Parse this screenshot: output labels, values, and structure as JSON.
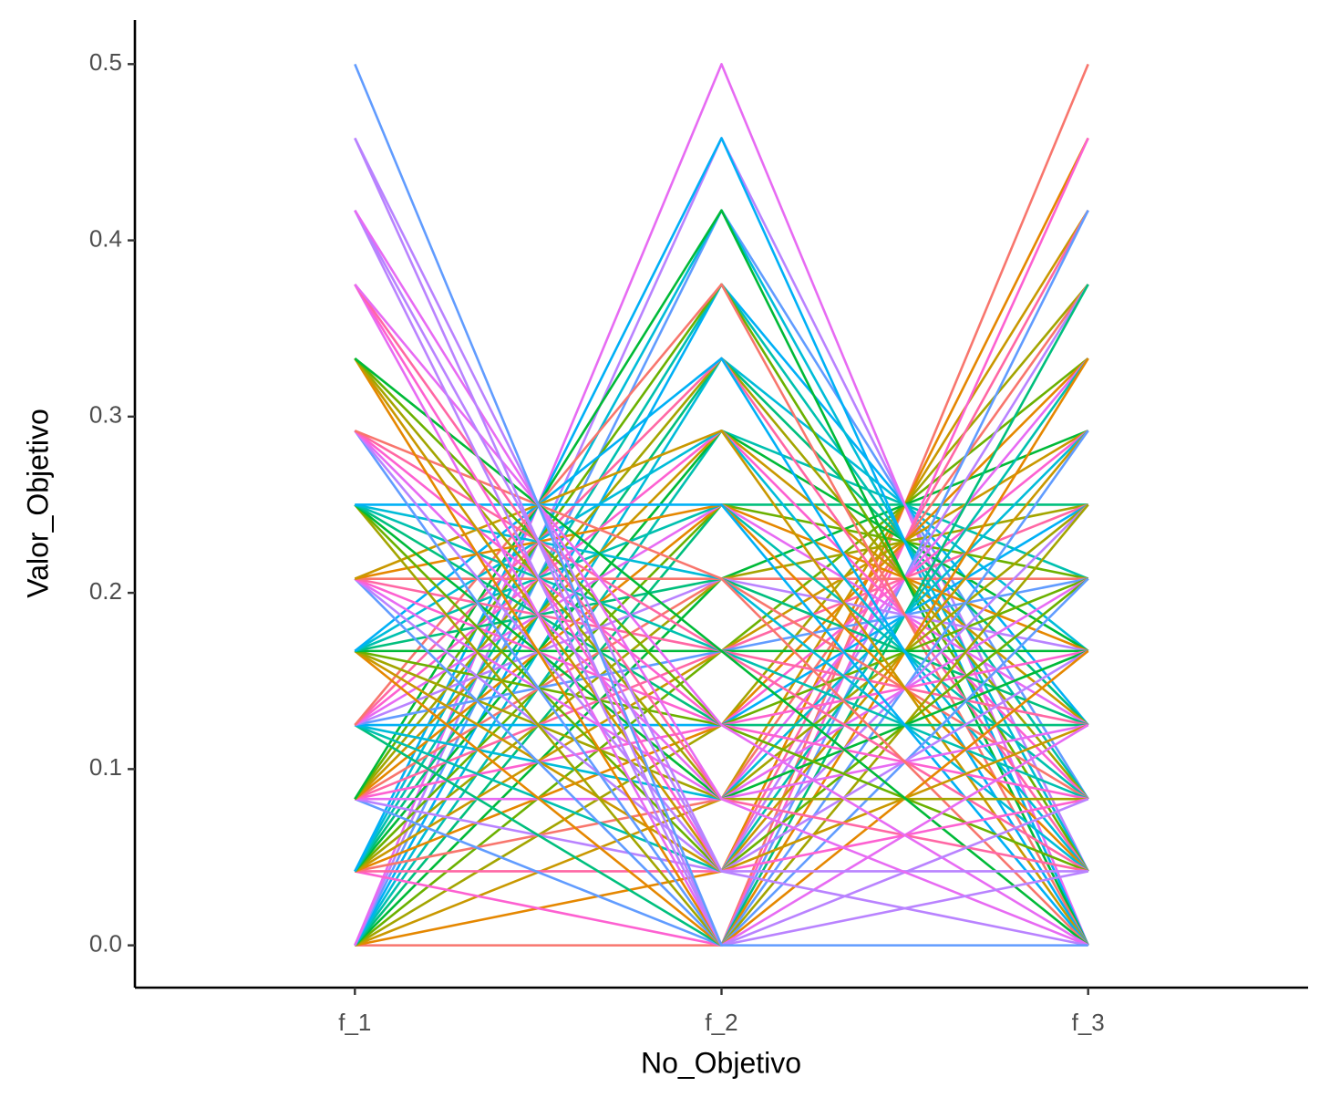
{
  "chart_data": {
    "type": "parallel",
    "x_label": "No_Objetivo",
    "y_label": "Valor_Objetivo",
    "categories": [
      "f_1",
      "f_2",
      "f_3"
    ],
    "ylim": [
      -0.024,
      0.525
    ],
    "yticks": [
      {
        "value": 0,
        "label": "0.0"
      },
      0.1,
      0.2,
      0.3,
      0.4,
      0.5
    ],
    "grid": false,
    "series": [
      {
        "color": "#F8766D",
        "values": [
          0,
          0,
          0.5
        ]
      },
      {
        "color": "#E58700",
        "values": [
          0,
          0.042,
          0.458
        ]
      },
      {
        "color": "#C99800",
        "values": [
          0,
          0.083,
          0.417
        ]
      },
      {
        "color": "#A3A500",
        "values": [
          0,
          0.125,
          0.375
        ]
      },
      {
        "color": "#6BB100",
        "values": [
          0,
          0.167,
          0.333
        ]
      },
      {
        "color": "#00BA38",
        "values": [
          0,
          0.208,
          0.292
        ]
      },
      {
        "color": "#00BF7D",
        "values": [
          0,
          0.25,
          0.25
        ]
      },
      {
        "color": "#00C0AF",
        "values": [
          0,
          0.292,
          0.208
        ]
      },
      {
        "color": "#00BCD8",
        "values": [
          0,
          0.333,
          0.167
        ]
      },
      {
        "color": "#00B0F6",
        "values": [
          0,
          0.375,
          0.125
        ]
      },
      {
        "color": "#619CFF",
        "values": [
          0,
          0.417,
          0.083
        ]
      },
      {
        "color": "#B983FF",
        "values": [
          0,
          0.458,
          0.042
        ]
      },
      {
        "color": "#E76BF3",
        "values": [
          0,
          0.5,
          0
        ]
      },
      {
        "color": "#FD61D1",
        "values": [
          0.042,
          0,
          0.458
        ]
      },
      {
        "color": "#FF67A4",
        "values": [
          0.042,
          0.042,
          0.417
        ]
      },
      {
        "color": "#F8766D",
        "values": [
          0.042,
          0.083,
          0.375
        ]
      },
      {
        "color": "#E58700",
        "values": [
          0.042,
          0.125,
          0.333
        ]
      },
      {
        "color": "#C99800",
        "values": [
          0.042,
          0.167,
          0.292
        ]
      },
      {
        "color": "#A3A500",
        "values": [
          0.042,
          0.208,
          0.25
        ]
      },
      {
        "color": "#6BB100",
        "values": [
          0.042,
          0.25,
          0.208
        ]
      },
      {
        "color": "#00BA38",
        "values": [
          0.042,
          0.292,
          0.167
        ]
      },
      {
        "color": "#00BF7D",
        "values": [
          0.042,
          0.333,
          0.125
        ]
      },
      {
        "color": "#00C0AF",
        "values": [
          0.042,
          0.375,
          0.083
        ]
      },
      {
        "color": "#00BCD8",
        "values": [
          0.042,
          0.417,
          0.042
        ]
      },
      {
        "color": "#00B0F6",
        "values": [
          0.042,
          0.458,
          0
        ]
      },
      {
        "color": "#619CFF",
        "values": [
          0.083,
          0,
          0.417
        ]
      },
      {
        "color": "#B983FF",
        "values": [
          0.083,
          0.042,
          0.375
        ]
      },
      {
        "color": "#E76BF3",
        "values": [
          0.083,
          0.083,
          0.333
        ]
      },
      {
        "color": "#FD61D1",
        "values": [
          0.083,
          0.125,
          0.292
        ]
      },
      {
        "color": "#FF67A4",
        "values": [
          0.083,
          0.167,
          0.25
        ]
      },
      {
        "color": "#F8766D",
        "values": [
          0.083,
          0.208,
          0.208
        ]
      },
      {
        "color": "#E58700",
        "values": [
          0.083,
          0.25,
          0.167
        ]
      },
      {
        "color": "#C99800",
        "values": [
          0.083,
          0.292,
          0.125
        ]
      },
      {
        "color": "#A3A500",
        "values": [
          0.083,
          0.333,
          0.083
        ]
      },
      {
        "color": "#6BB100",
        "values": [
          0.083,
          0.375,
          0.042
        ]
      },
      {
        "color": "#00BA38",
        "values": [
          0.083,
          0.417,
          0
        ]
      },
      {
        "color": "#00BF7D",
        "values": [
          0.125,
          0,
          0.375
        ]
      },
      {
        "color": "#00C0AF",
        "values": [
          0.125,
          0.042,
          0.333
        ]
      },
      {
        "color": "#00BCD8",
        "values": [
          0.125,
          0.083,
          0.292
        ]
      },
      {
        "color": "#00B0F6",
        "values": [
          0.125,
          0.125,
          0.25
        ]
      },
      {
        "color": "#619CFF",
        "values": [
          0.125,
          0.167,
          0.208
        ]
      },
      {
        "color": "#B983FF",
        "values": [
          0.125,
          0.208,
          0.167
        ]
      },
      {
        "color": "#E76BF3",
        "values": [
          0.125,
          0.25,
          0.125
        ]
      },
      {
        "color": "#FD61D1",
        "values": [
          0.125,
          0.292,
          0.083
        ]
      },
      {
        "color": "#FF67A4",
        "values": [
          0.125,
          0.333,
          0.042
        ]
      },
      {
        "color": "#F8766D",
        "values": [
          0.125,
          0.375,
          0
        ]
      },
      {
        "color": "#E58700",
        "values": [
          0.167,
          0,
          0.333
        ]
      },
      {
        "color": "#C99800",
        "values": [
          0.167,
          0.042,
          0.292
        ]
      },
      {
        "color": "#A3A500",
        "values": [
          0.167,
          0.083,
          0.25
        ]
      },
      {
        "color": "#6BB100",
        "values": [
          0.167,
          0.125,
          0.208
        ]
      },
      {
        "color": "#00BA38",
        "values": [
          0.167,
          0.167,
          0.167
        ]
      },
      {
        "color": "#00BF7D",
        "values": [
          0.167,
          0.208,
          0.125
        ]
      },
      {
        "color": "#00C0AF",
        "values": [
          0.167,
          0.25,
          0.083
        ]
      },
      {
        "color": "#00BCD8",
        "values": [
          0.167,
          0.292,
          0.042
        ]
      },
      {
        "color": "#00B0F6",
        "values": [
          0.167,
          0.333,
          0
        ]
      },
      {
        "color": "#619CFF",
        "values": [
          0.208,
          0,
          0.292
        ]
      },
      {
        "color": "#B983FF",
        "values": [
          0.208,
          0.042,
          0.25
        ]
      },
      {
        "color": "#E76BF3",
        "values": [
          0.208,
          0.083,
          0.208
        ]
      },
      {
        "color": "#FD61D1",
        "values": [
          0.208,
          0.125,
          0.167
        ]
      },
      {
        "color": "#FF67A4",
        "values": [
          0.208,
          0.167,
          0.125
        ]
      },
      {
        "color": "#F8766D",
        "values": [
          0.208,
          0.208,
          0.083
        ]
      },
      {
        "color": "#E58700",
        "values": [
          0.208,
          0.25,
          0.042
        ]
      },
      {
        "color": "#C99800",
        "values": [
          0.208,
          0.292,
          0
        ]
      },
      {
        "color": "#A3A500",
        "values": [
          0.25,
          0,
          0.25
        ]
      },
      {
        "color": "#6BB100",
        "values": [
          0.25,
          0.042,
          0.208
        ]
      },
      {
        "color": "#00BA38",
        "values": [
          0.25,
          0.083,
          0.167
        ]
      },
      {
        "color": "#00BF7D",
        "values": [
          0.25,
          0.125,
          0.125
        ]
      },
      {
        "color": "#00C0AF",
        "values": [
          0.25,
          0.167,
          0.083
        ]
      },
      {
        "color": "#00BCD8",
        "values": [
          0.25,
          0.208,
          0.042
        ]
      },
      {
        "color": "#00B0F6",
        "values": [
          0.25,
          0.25,
          0
        ]
      },
      {
        "color": "#619CFF",
        "values": [
          0.292,
          0,
          0.208
        ]
      },
      {
        "color": "#B983FF",
        "values": [
          0.292,
          0.042,
          0.167
        ]
      },
      {
        "color": "#E76BF3",
        "values": [
          0.292,
          0.083,
          0.125
        ]
      },
      {
        "color": "#FD61D1",
        "values": [
          0.292,
          0.125,
          0.083
        ]
      },
      {
        "color": "#FF67A4",
        "values": [
          0.292,
          0.167,
          0.042
        ]
      },
      {
        "color": "#F8766D",
        "values": [
          0.292,
          0.208,
          0
        ]
      },
      {
        "color": "#E58700",
        "values": [
          0.333,
          0,
          0.167
        ]
      },
      {
        "color": "#C99800",
        "values": [
          0.333,
          0.042,
          0.125
        ]
      },
      {
        "color": "#A3A500",
        "values": [
          0.333,
          0.083,
          0.083
        ]
      },
      {
        "color": "#6BB100",
        "values": [
          0.333,
          0.125,
          0.042
        ]
      },
      {
        "color": "#00BA38",
        "values": [
          0.333,
          0.167,
          0
        ]
      },
      {
        "color": "#E76BF3",
        "values": [
          0.375,
          0,
          0.125
        ]
      },
      {
        "color": "#FD61D1",
        "values": [
          0.375,
          0.042,
          0.083
        ]
      },
      {
        "color": "#FF67A4",
        "values": [
          0.375,
          0.083,
          0.042
        ]
      },
      {
        "color": "#E76BF3",
        "values": [
          0.375,
          0.125,
          0
        ]
      },
      {
        "color": "#B983FF",
        "values": [
          0.417,
          0,
          0.083
        ]
      },
      {
        "color": "#B983FF",
        "values": [
          0.417,
          0.042,
          0.042
        ]
      },
      {
        "color": "#E76BF3",
        "values": [
          0.417,
          0.083,
          0
        ]
      },
      {
        "color": "#B983FF",
        "values": [
          0.458,
          0,
          0.042
        ]
      },
      {
        "color": "#B983FF",
        "values": [
          0.458,
          0.042,
          0
        ]
      },
      {
        "color": "#619CFF",
        "values": [
          0.5,
          0,
          0
        ]
      }
    ]
  }
}
